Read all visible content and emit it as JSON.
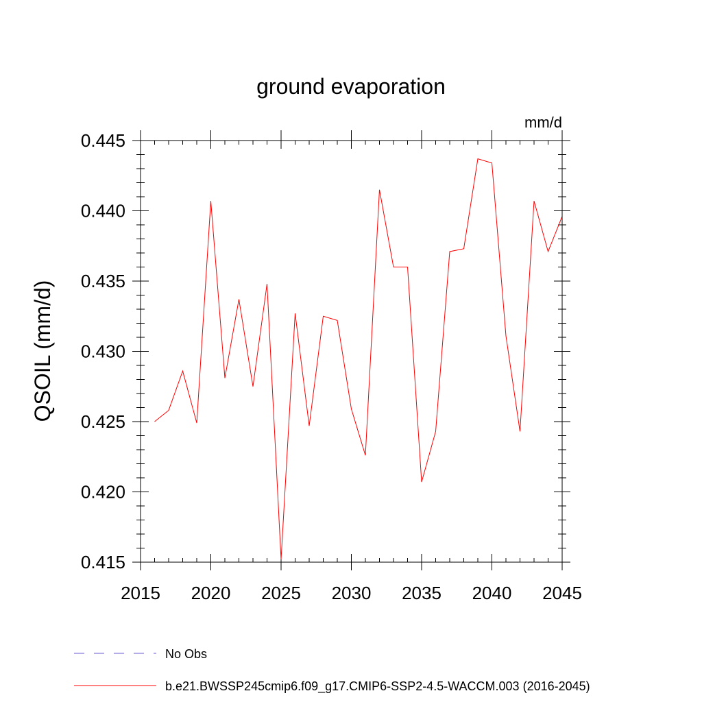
{
  "chart_data": {
    "type": "line",
    "title": "ground evaporation",
    "units_label": "mm/d",
    "ylabel": "QSOIL  (mm/d)",
    "xlabel": "",
    "xlim": [
      2015,
      2045
    ],
    "ylim": [
      0.415,
      0.445
    ],
    "x_ticks": [
      2015,
      2020,
      2025,
      2030,
      2035,
      2040,
      2045
    ],
    "x_tick_labels": [
      "2015",
      "2020",
      "2025",
      "2030",
      "2035",
      "2040",
      "2045"
    ],
    "y_ticks": [
      0.415,
      0.42,
      0.425,
      0.43,
      0.435,
      0.44,
      0.445
    ],
    "y_tick_labels": [
      "0.415",
      "0.420",
      "0.425",
      "0.430",
      "0.435",
      "0.440",
      "0.445"
    ],
    "grid": false,
    "legend_position": "bottom-left",
    "series": [
      {
        "name": "b.e21.BWSSP245cmip6.f09_g17.CMIP6-SSP2-4.5-WACCM.003 (2016-2045)",
        "color": "#ff0000",
        "style": "solid",
        "x": [
          2016,
          2017,
          2018,
          2019,
          2020,
          2021,
          2022,
          2023,
          2024,
          2025,
          2026,
          2027,
          2028,
          2029,
          2030,
          2031,
          2032,
          2033,
          2034,
          2035,
          2036,
          2037,
          2038,
          2039,
          2040,
          2041,
          2042,
          2043,
          2044,
          2045
        ],
        "values": [
          0.425,
          0.4258,
          0.4286,
          0.4249,
          0.4407,
          0.4281,
          0.4337,
          0.4275,
          0.4348,
          0.4152,
          0.4327,
          0.4247,
          0.4325,
          0.4322,
          0.4259,
          0.4226,
          0.4415,
          0.436,
          0.436,
          0.4207,
          0.4243,
          0.4371,
          0.4373,
          0.4437,
          0.4434,
          0.4311,
          0.4243,
          0.4407,
          0.4371,
          0.4396
        ]
      },
      {
        "name": "No Obs",
        "color": "#6a5acd",
        "style": "dashed",
        "x": [],
        "values": []
      }
    ]
  }
}
